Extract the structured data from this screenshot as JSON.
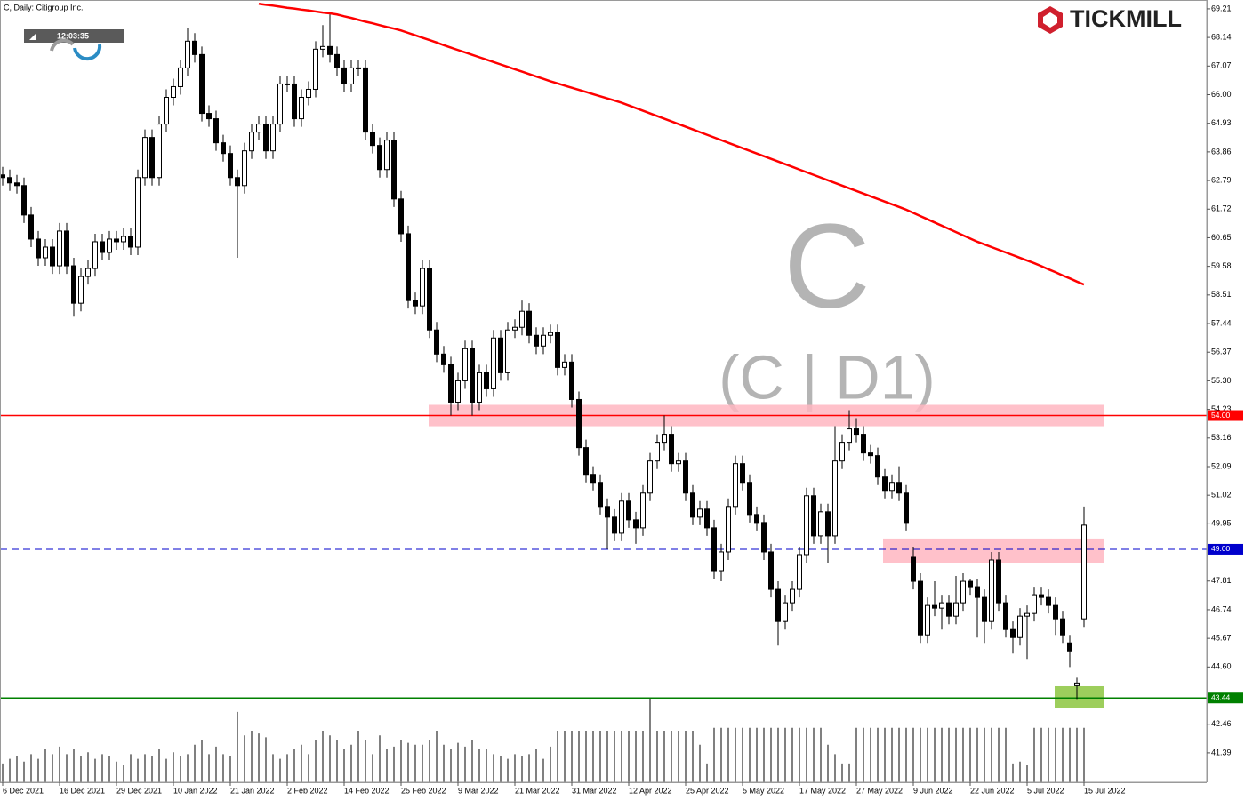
{
  "chart_data": {
    "type": "candlestick",
    "title": "C, Daily:  Citigroup Inc.",
    "clock": "12:03:35",
    "watermark": {
      "symbol": "C",
      "period": "(C | D1)"
    },
    "brand": "TICKMILL",
    "up_color": "#ffffff",
    "down_color": "#000000",
    "ma_color": "#ff0000",
    "volume_color": "#000000",
    "ylim": [
      40.29,
      69.44
    ],
    "yticks": [
      69.21,
      68.14,
      67.07,
      {
        "value": 66,
        "label": "66.00"
      },
      64.93,
      63.86,
      62.79,
      61.72,
      60.65,
      59.58,
      58.51,
      57.44,
      56.37,
      {
        "value": 55.3,
        "label": "55.30"
      },
      54.23,
      53.16,
      52.09,
      51.02,
      49.95,
      47.81,
      46.74,
      45.67,
      {
        "value": 44.6,
        "label": "44.60"
      },
      42.46,
      41.39
    ],
    "categories": [
      "6 Dec 2021",
      null,
      null,
      null,
      null,
      null,
      null,
      null,
      "16 Dec 2021",
      null,
      null,
      null,
      null,
      null,
      null,
      null,
      "29 Dec 2021",
      null,
      null,
      null,
      null,
      null,
      null,
      null,
      "10 Jan 2022",
      null,
      null,
      null,
      null,
      null,
      null,
      null,
      "21 Jan 2022",
      null,
      null,
      null,
      null,
      null,
      null,
      null,
      "2 Feb 2022",
      null,
      null,
      null,
      null,
      null,
      null,
      null,
      "14 Feb 2022",
      null,
      null,
      null,
      null,
      null,
      null,
      null,
      "25 Feb 2022",
      null,
      null,
      null,
      null,
      null,
      null,
      null,
      "9 Mar 2022",
      null,
      null,
      null,
      null,
      null,
      null,
      null,
      "21 Mar 2022",
      null,
      null,
      null,
      null,
      null,
      null,
      null,
      "31 Mar 2022",
      null,
      null,
      null,
      null,
      null,
      null,
      null,
      "12 Apr 2022",
      null,
      null,
      null,
      null,
      null,
      null,
      null,
      "25 Apr 2022",
      null,
      null,
      null,
      null,
      null,
      null,
      null,
      "5 May 2022",
      null,
      null,
      null,
      null,
      null,
      null,
      null,
      "17 May 2022",
      null,
      null,
      null,
      null,
      null,
      null,
      null,
      "27 May 2022",
      null,
      null,
      null,
      null,
      null,
      null,
      null,
      "9 Jun 2022",
      null,
      null,
      null,
      null,
      null,
      null,
      null,
      "22 Jun 2022",
      null,
      null,
      null,
      null,
      null,
      null,
      null,
      "5 Jul 2022",
      null,
      null,
      null,
      null,
      null,
      null,
      null,
      "15 Jul 2022"
    ],
    "open": [
      63.0,
      62.9,
      62.7,
      62.6,
      61.5,
      60.6,
      59.9,
      60.3,
      59.6,
      60.9,
      59.6,
      58.2,
      59.2,
      59.5,
      60.5,
      60.1,
      60.6,
      60.5,
      60.7,
      60.3,
      62.9,
      64.4,
      62.9,
      64.9,
      65.9,
      66.3,
      67.0,
      68.0,
      67.5,
      65.3,
      65.1,
      64.2,
      63.8,
      62.9,
      62.6,
      63.9,
      64.6,
      64.9,
      63.9,
      64.9,
      66.4,
      66.4,
      65.1,
      65.9,
      66.2,
      67.7,
      67.8,
      67.5,
      67.0,
      66.4,
      67.0,
      67.0,
      64.6,
      64.1,
      63.2,
      64.3,
      62.1,
      60.8,
      58.3,
      58.1,
      59.5,
      57.2,
      56.3,
      55.9,
      54.5,
      55.3,
      56.5,
      54.5,
      55.6,
      55.0,
      56.9,
      55.6,
      57.2,
      57.3,
      57.9,
      57.0,
      56.6,
      57.0,
      57.1,
      55.8,
      56.0,
      54.6,
      52.8,
      51.8,
      51.5,
      50.6,
      50.2,
      49.6,
      50.8,
      50.1,
      49.8,
      51.1,
      52.3,
      53.0,
      53.3,
      52.2,
      52.3,
      51.1,
      50.2,
      50.5,
      49.8,
      48.2,
      48.9,
      50.6,
      52.2,
      51.5,
      50.3,
      50.0,
      48.9,
      47.5,
      46.3,
      47.0,
      47.5,
      48.8,
      51.0,
      49.5,
      50.4,
      49.5,
      52.3,
      53.0,
      53.5,
      53.3,
      52.6,
      52.5,
      51.7,
      51.2,
      51.5,
      51.1,
      48.7,
      47.8,
      45.8,
      46.9,
      46.8,
      47.0,
      46.5,
      47.0,
      47.8,
      47.6,
      47.2,
      46.3,
      48.6,
      47.0,
      46.0,
      45.7,
      46.5,
      46.6,
      47.3,
      47.2,
      46.9,
      46.4,
      45.5,
      43.9,
      46.4
    ],
    "high": [
      63.3,
      63.2,
      63.0,
      62.9,
      61.8,
      60.9,
      60.6,
      60.6,
      61.2,
      61.2,
      59.9,
      59.5,
      59.8,
      60.8,
      60.8,
      60.9,
      60.9,
      61.0,
      61.0,
      63.2,
      64.7,
      64.7,
      65.2,
      66.2,
      66.6,
      67.3,
      68.5,
      68.3,
      67.8,
      65.6,
      65.4,
      64.5,
      64.1,
      63.2,
      64.2,
      64.9,
      65.2,
      65.2,
      65.2,
      66.7,
      66.7,
      66.7,
      66.2,
      66.5,
      68.0,
      68.6,
      69.0,
      67.8,
      67.3,
      67.3,
      67.3,
      67.3,
      64.9,
      64.4,
      64.6,
      64.6,
      62.4,
      61.1,
      58.6,
      59.8,
      59.8,
      57.5,
      56.6,
      56.2,
      55.6,
      56.8,
      56.8,
      55.9,
      55.9,
      57.2,
      57.2,
      57.5,
      57.6,
      58.3,
      58.2,
      57.3,
      57.3,
      57.4,
      57.4,
      56.3,
      56.3,
      54.9,
      53.1,
      52.1,
      51.8,
      50.9,
      50.5,
      51.1,
      51.1,
      50.4,
      51.4,
      52.6,
      53.3,
      54.0,
      53.6,
      52.6,
      52.6,
      51.4,
      50.8,
      50.8,
      50.1,
      49.2,
      50.9,
      52.5,
      52.5,
      51.8,
      50.6,
      50.3,
      49.2,
      47.8,
      47.3,
      47.8,
      49.1,
      51.3,
      51.3,
      50.7,
      50.7,
      53.6,
      53.3,
      54.2,
      53.9,
      53.6,
      52.9,
      52.8,
      52.0,
      51.8,
      52.1,
      51.4,
      49.1,
      48.1,
      47.2,
      47.8,
      47.3,
      47.3,
      48.0,
      48.1,
      47.9,
      47.9,
      47.5,
      48.9,
      48.9,
      47.3,
      46.3,
      46.8,
      46.9,
      47.6,
      47.6,
      47.5,
      47.2,
      46.7,
      45.8,
      44.2,
      50.6
    ],
    "low": [
      62.6,
      62.4,
      62.3,
      61.2,
      60.3,
      59.6,
      59.6,
      59.3,
      59.3,
      59.3,
      57.7,
      57.9,
      58.9,
      59.2,
      59.8,
      59.8,
      60.2,
      60.2,
      60.0,
      60.0,
      62.6,
      62.6,
      62.6,
      64.6,
      65.6,
      66.0,
      66.7,
      67.2,
      65.0,
      64.8,
      63.9,
      63.5,
      62.6,
      59.9,
      62.3,
      63.6,
      64.3,
      63.6,
      63.6,
      64.6,
      66.1,
      64.8,
      64.8,
      65.6,
      65.9,
      67.4,
      67.2,
      66.7,
      66.1,
      66.1,
      66.7,
      64.3,
      63.8,
      62.9,
      62.9,
      61.8,
      60.5,
      58.0,
      57.8,
      57.8,
      56.9,
      56.0,
      55.6,
      54.0,
      54.2,
      55.0,
      54.0,
      54.2,
      54.7,
      54.7,
      55.3,
      55.3,
      56.9,
      57.0,
      56.7,
      56.3,
      56.3,
      56.7,
      55.5,
      55.5,
      54.3,
      52.5,
      51.5,
      51.2,
      50.3,
      49.0,
      49.3,
      49.3,
      49.8,
      49.2,
      49.5,
      50.8,
      52.0,
      52.7,
      51.9,
      51.9,
      50.8,
      49.9,
      49.9,
      49.5,
      47.9,
      47.8,
      48.6,
      50.3,
      51.2,
      50.0,
      49.7,
      48.6,
      47.2,
      45.4,
      46.0,
      46.7,
      47.2,
      48.5,
      49.2,
      49.2,
      48.5,
      49.2,
      52.0,
      52.7,
      53.0,
      52.3,
      52.2,
      51.4,
      50.9,
      50.9,
      50.8,
      49.7,
      47.5,
      45.5,
      45.5,
      46.5,
      46.0,
      46.2,
      46.2,
      46.7,
      47.3,
      45.7,
      45.5,
      46.0,
      46.7,
      45.7,
      45.1,
      45.4,
      44.9,
      46.3,
      46.9,
      46.6,
      45.8,
      45.5,
      44.6,
      43.4,
      46.1
    ],
    "close": [
      62.9,
      62.7,
      62.6,
      61.5,
      60.6,
      59.9,
      60.3,
      59.6,
      60.9,
      59.6,
      58.2,
      59.2,
      59.5,
      60.5,
      60.1,
      60.6,
      60.5,
      60.7,
      60.3,
      62.9,
      64.4,
      62.9,
      64.9,
      65.9,
      66.3,
      67.0,
      68.0,
      67.5,
      65.3,
      65.1,
      64.2,
      63.8,
      62.9,
      62.6,
      63.9,
      64.6,
      64.9,
      63.9,
      64.9,
      66.4,
      66.4,
      65.1,
      65.9,
      66.2,
      67.7,
      67.8,
      67.5,
      67.0,
      66.4,
      67.0,
      67.0,
      64.6,
      64.1,
      63.2,
      64.3,
      62.1,
      60.8,
      58.3,
      58.1,
      59.5,
      57.2,
      56.3,
      55.9,
      54.5,
      55.3,
      56.5,
      54.5,
      55.6,
      55.0,
      56.9,
      55.6,
      57.2,
      57.3,
      57.9,
      57.0,
      56.6,
      57.0,
      57.1,
      55.8,
      56.0,
      54.6,
      52.8,
      51.8,
      51.5,
      50.6,
      50.2,
      49.6,
      50.8,
      50.1,
      49.8,
      51.1,
      52.3,
      53.0,
      53.3,
      52.2,
      52.3,
      51.1,
      50.2,
      50.5,
      49.8,
      48.2,
      48.9,
      50.6,
      52.2,
      51.5,
      50.3,
      50.0,
      48.9,
      47.5,
      46.3,
      47.0,
      47.5,
      48.8,
      51.0,
      49.5,
      50.4,
      49.5,
      52.3,
      53.0,
      53.5,
      53.3,
      52.6,
      52.5,
      51.7,
      51.2,
      51.5,
      51.1,
      50.0,
      47.8,
      45.8,
      46.9,
      46.8,
      47.0,
      46.5,
      47.0,
      47.8,
      47.6,
      47.2,
      46.3,
      48.6,
      47.0,
      46.0,
      45.7,
      46.5,
      46.6,
      47.3,
      47.2,
      46.9,
      46.4,
      45.8,
      45.2,
      44.0,
      49.9
    ],
    "volume": [
      20,
      25,
      28,
      22,
      30,
      25,
      35,
      30,
      38,
      30,
      35,
      28,
      32,
      25,
      30,
      28,
      22,
      18,
      30,
      25,
      30,
      28,
      35,
      25,
      32,
      28,
      30,
      40,
      45,
      30,
      38,
      30,
      28,
      75,
      50,
      55,
      52,
      48,
      30,
      25,
      30,
      35,
      40,
      30,
      45,
      55,
      50,
      45,
      35,
      40,
      55,
      45,
      30,
      50,
      35,
      38,
      45,
      42,
      40,
      40,
      45,
      55,
      40,
      35,
      42,
      38,
      45,
      35,
      35,
      30,
      28,
      25,
      30,
      28,
      30,
      35,
      25,
      38,
      55,
      55,
      55,
      55,
      55,
      55,
      55,
      55,
      55,
      55,
      55,
      55,
      55,
      90,
      55,
      55,
      55,
      55,
      55,
      55,
      40,
      20,
      58,
      58,
      58,
      58,
      58,
      58,
      58,
      58,
      58,
      58,
      58,
      58,
      58,
      58,
      58,
      58,
      40,
      30,
      20,
      20,
      58,
      58,
      58,
      58,
      58,
      58,
      58,
      58,
      58,
      58,
      58,
      58,
      58,
      58,
      58,
      58,
      58,
      58,
      58,
      58,
      58,
      58,
      20,
      22,
      18,
      58,
      58,
      58,
      58,
      58,
      58,
      58,
      58
    ],
    "ma": [
      null,
      null,
      null,
      null,
      null,
      null,
      null,
      null,
      null,
      null,
      null,
      null,
      null,
      null,
      null,
      null,
      null,
      null,
      null,
      null,
      null,
      null,
      null,
      null,
      null,
      null,
      null,
      null,
      null,
      null,
      null,
      null,
      null,
      null,
      null,
      null,
      69.4,
      69.36,
      69.33,
      69.29,
      69.25,
      69.22,
      69.18,
      69.15,
      69.11,
      69.07,
      69.04,
      69.0,
      68.93,
      68.87,
      68.8,
      68.73,
      68.67,
      68.6,
      68.53,
      68.47,
      68.4,
      68.31,
      68.22,
      68.13,
      68.04,
      67.95,
      67.85,
      67.76,
      67.67,
      67.58,
      67.49,
      67.4,
      67.31,
      67.22,
      67.13,
      67.04,
      66.95,
      66.86,
      66.77,
      66.68,
      66.59,
      66.5,
      66.42,
      66.34,
      66.26,
      66.18,
      66.1,
      66.02,
      65.94,
      65.86,
      65.78,
      65.7,
      65.6,
      65.5,
      65.4,
      65.3,
      65.2,
      65.1,
      65.0,
      64.9,
      64.8,
      64.7,
      64.6,
      64.5,
      64.4,
      64.3,
      64.2,
      64.1,
      64.0,
      63.9,
      63.8,
      63.7,
      63.6,
      63.5,
      63.4,
      63.3,
      63.2,
      63.1,
      63.0,
      62.9,
      62.8,
      62.7,
      62.6,
      62.5,
      62.4,
      62.3,
      62.2,
      62.1,
      62.0,
      61.9,
      61.8,
      61.7,
      61.58,
      61.46,
      61.34,
      61.22,
      61.1,
      60.98,
      60.86,
      60.74,
      60.62,
      60.5,
      60.4,
      60.3,
      60.2,
      60.1,
      60.0,
      59.9,
      59.8,
      59.7,
      59.59,
      59.47,
      59.36,
      59.24,
      59.13,
      59.01,
      58.9
    ],
    "levels": [
      {
        "value": 54,
        "label": "54.00",
        "color": "#ff0000",
        "style": "solid"
      },
      {
        "value": 49,
        "label": "49.00",
        "color": "#0000cc",
        "style": "dashed"
      },
      {
        "value": 43.44,
        "color": "#008000",
        "style": "solid"
      }
    ],
    "zones": [
      {
        "top": 54.4,
        "bottom": 53.6,
        "color": "#ffb6c1"
      },
      {
        "top": 49.4,
        "bottom": 48.5,
        "color": "#ffb6c1"
      },
      {
        "top": 43.88,
        "bottom": 43.05,
        "color": "#8cc63f"
      }
    ]
  }
}
